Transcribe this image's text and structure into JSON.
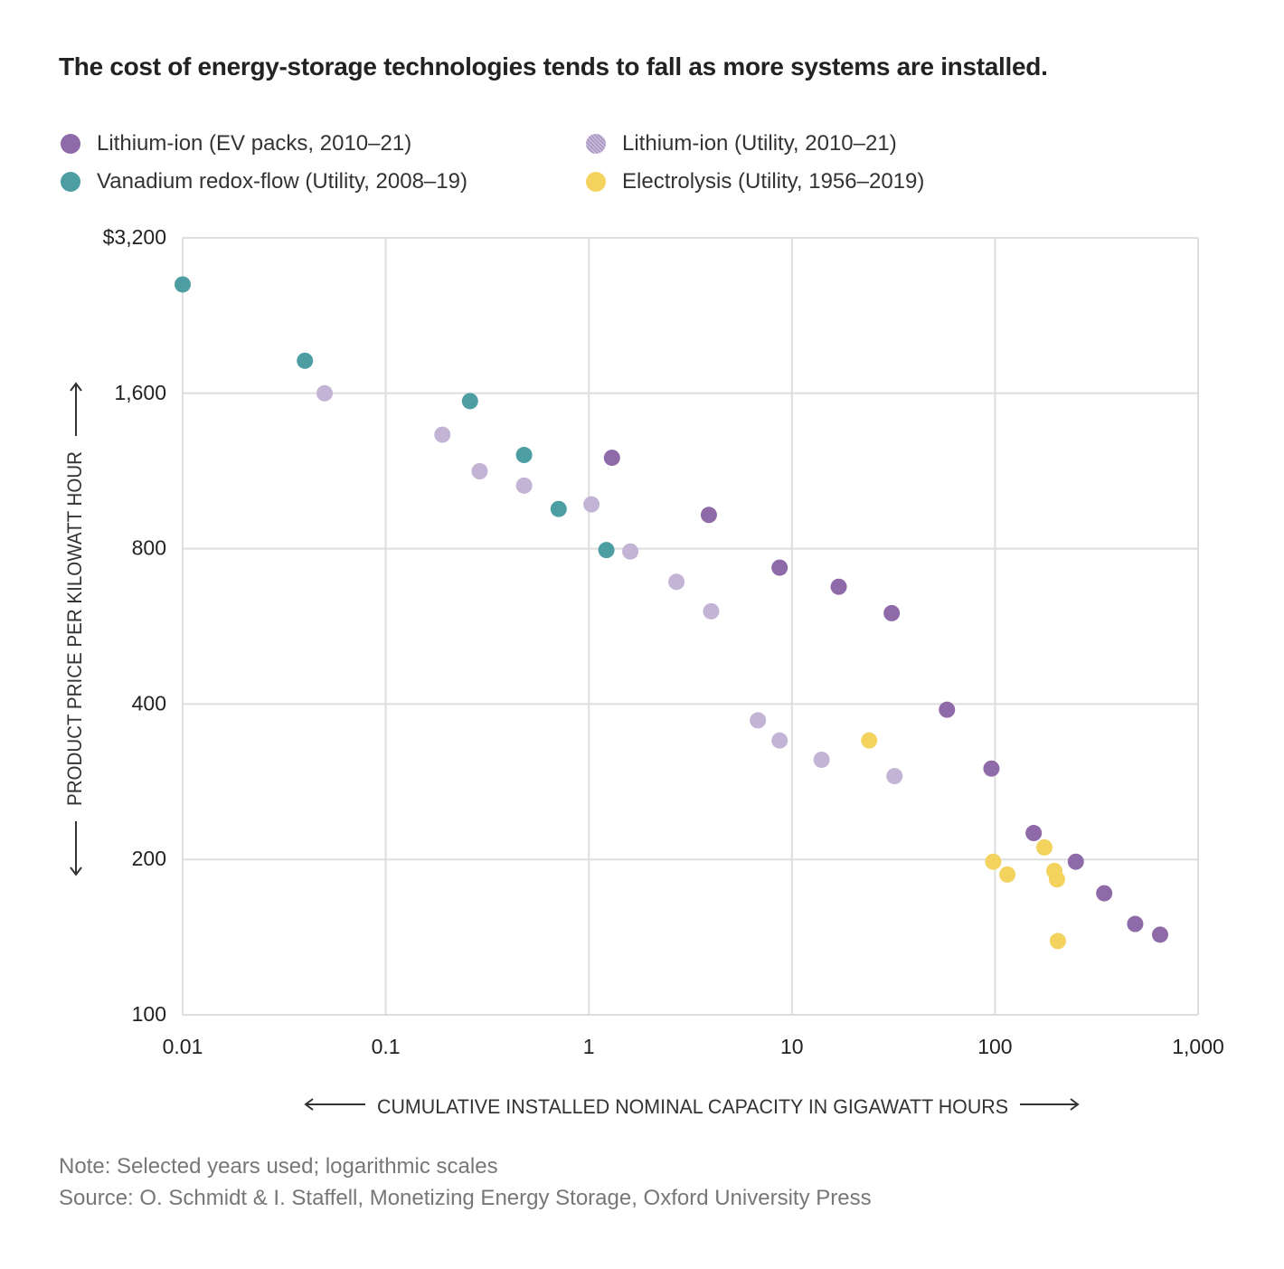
{
  "title": "The cost of energy-storage technologies tends to fall as more systems are installed.",
  "legend": [
    {
      "label": "Lithium-ion (EV packs, 2010–21)",
      "color": "#8e6aa8"
    },
    {
      "label": "Lithium-ion (Utility, 2010–21)",
      "color": "#c3b3d4"
    },
    {
      "label": "Vanadium redox-flow (Utility, 2008–19)",
      "color": "#4d9ea3"
    },
    {
      "label": "Electrolysis (Utility, 1956–2019)",
      "color": "#f3d35d"
    }
  ],
  "footer": {
    "note": "Note: Selected years used; logarithmic scales",
    "source": "Source:  O. Schmidt & I. Staffell, Monetizing Energy Storage, Oxford University Press"
  },
  "chart_data": {
    "type": "scatter",
    "title": "The cost of energy-storage technologies tends to fall as more systems are installed.",
    "xlabel": "CUMULATIVE INSTALLED NOMINAL CAPACITY IN GIGAWATT HOURS",
    "ylabel": "PRODUCT PRICE PER KILOWATT HOUR",
    "xscale": "log",
    "yscale": "log",
    "xlim": [
      0.01,
      1000
    ],
    "ylim": [
      100,
      3200
    ],
    "xticks": [
      {
        "value": 0.01,
        "label": "0.01"
      },
      {
        "value": 0.1,
        "label": "0.1"
      },
      {
        "value": 1,
        "label": "1"
      },
      {
        "value": 10,
        "label": "10"
      },
      {
        "value": 100,
        "label": "100"
      },
      {
        "value": 1000,
        "label": "1,000"
      }
    ],
    "yticks": [
      {
        "value": 100,
        "label": "100"
      },
      {
        "value": 200,
        "label": "200"
      },
      {
        "value": 400,
        "label": "400"
      },
      {
        "value": 800,
        "label": "800"
      },
      {
        "value": 1600,
        "label": "1,600"
      },
      {
        "value": 3200,
        "label": "$3,200"
      }
    ],
    "grid": true,
    "series": [
      {
        "name": "Lithium-ion (EV packs, 2010–21)",
        "color": "#8e6aa8",
        "points": [
          [
            1.3,
            1200
          ],
          [
            3.9,
            930
          ],
          [
            8.7,
            735
          ],
          [
            17,
            675
          ],
          [
            31,
            600
          ],
          [
            58,
            390
          ],
          [
            96,
            300
          ],
          [
            155,
            225
          ],
          [
            250,
            198
          ],
          [
            345,
            172
          ],
          [
            490,
            150
          ],
          [
            650,
            143
          ]
        ]
      },
      {
        "name": "Lithium-ion (Utility, 2010–21)",
        "color": "#c3b3d4",
        "points": [
          [
            0.05,
            1600
          ],
          [
            0.19,
            1330
          ],
          [
            0.29,
            1130
          ],
          [
            0.48,
            1060
          ],
          [
            1.03,
            975
          ],
          [
            1.6,
            790
          ],
          [
            2.7,
            690
          ],
          [
            4.0,
            605
          ],
          [
            6.8,
            372
          ],
          [
            8.7,
            340
          ],
          [
            14,
            312
          ],
          [
            32,
            290
          ]
        ]
      },
      {
        "name": "Vanadium redox-flow (Utility, 2008–19)",
        "color": "#4d9ea3",
        "points": [
          [
            0.01,
            2600
          ],
          [
            0.04,
            1850
          ],
          [
            0.26,
            1545
          ],
          [
            0.48,
            1215
          ],
          [
            0.71,
            955
          ],
          [
            1.22,
            795
          ]
        ]
      },
      {
        "name": "Electrolysis (Utility, 1956–2019)",
        "color": "#f3d35d",
        "points": [
          [
            24,
            340
          ],
          [
            98,
            198
          ],
          [
            115,
            187
          ],
          [
            175,
            211
          ],
          [
            196,
            190
          ],
          [
            202,
            183
          ],
          [
            204,
            139
          ]
        ]
      }
    ]
  }
}
